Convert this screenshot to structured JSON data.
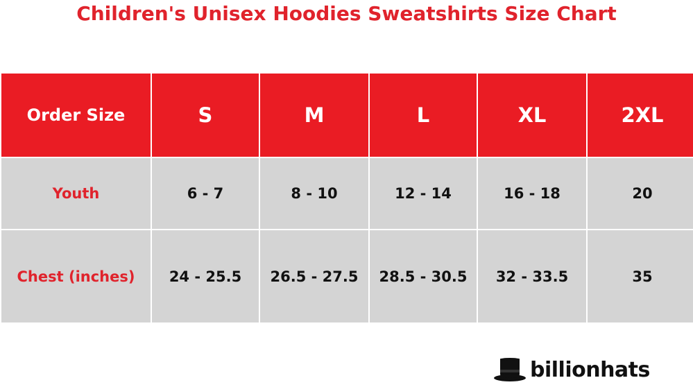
{
  "title": "Children's Unisex Hoodies Sweatshirts Size Chart",
  "colors": {
    "accent_red": "#ea1c24",
    "title_red": "#e0232c",
    "row_gray": "#d4d4d4",
    "text_dark": "#111111"
  },
  "table": {
    "header": [
      "Order Size",
      "S",
      "M",
      "L",
      "XL",
      "2XL"
    ],
    "rows": [
      {
        "label": "Youth",
        "values": [
          "6 - 7",
          "8 - 10",
          "12 - 14",
          "16 - 18",
          "20"
        ]
      },
      {
        "label": "Chest (inches)",
        "values": [
          "24 - 25.5",
          "26.5 - 27.5",
          "28.5 - 30.5",
          "32 - 33.5",
          "35"
        ]
      }
    ]
  },
  "logo": {
    "icon": "top-hat-icon",
    "text": "billionhats"
  }
}
